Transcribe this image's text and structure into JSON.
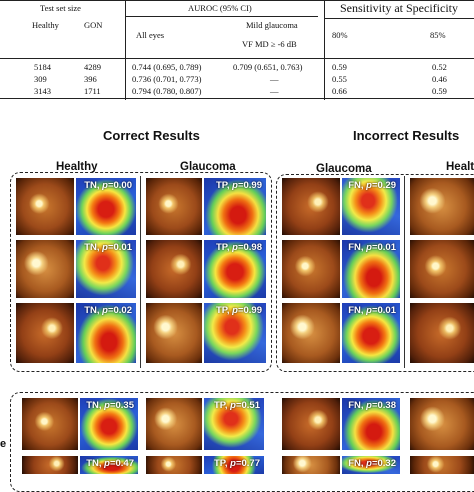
{
  "table": {
    "header": {
      "test_set_size": "Test set size",
      "auroc": "AUROC (95% CI)",
      "sensitivity": "Sensitivity at Specificity",
      "healthy": "Healthy",
      "gon": "GON",
      "all_eyes": "All eyes",
      "mild_glaucoma": "Mild glaucoma",
      "vf_md": "VF MD ≥ -6 dB",
      "spec_80": "80%",
      "spec_85": "85%"
    },
    "rows": [
      {
        "healthy": "5184",
        "gon": "4289",
        "all_eyes": "0.744 (0.695, 0.789)",
        "mild": "0.709 (0.651, 0.763)",
        "s80": "0.59",
        "s85": "0.52"
      },
      {
        "healthy": "309",
        "gon": "396",
        "all_eyes": "0.736 (0.701, 0.773)",
        "mild": "—",
        "s80": "0.55",
        "s85": "0.46"
      },
      {
        "healthy": "3143",
        "gon": "1711",
        "all_eyes": "0.794 (0.780, 0.807)",
        "mild": "—",
        "s80": "0.66",
        "s85": "0.59"
      }
    ]
  },
  "sections": {
    "correct": "Correct Results",
    "incorrect": "Incorrect Results",
    "healthy": "Healthy",
    "glaucoma": "Glaucoma",
    "glaucoma_right": "Glaucoma",
    "healthy_right": "Healt"
  },
  "panels": {
    "tn": [
      {
        "prefix": "TN, ",
        "p": "p",
        "value": "=0.00"
      },
      {
        "prefix": "TN, ",
        "p": "p",
        "value": "=0.01"
      },
      {
        "prefix": "TN, ",
        "p": "p",
        "value": "=0.02"
      }
    ],
    "tp": [
      {
        "prefix": "TP, ",
        "p": "p",
        "value": "=0.99"
      },
      {
        "prefix": "TP, ",
        "p": "p",
        "value": "=0.98"
      },
      {
        "prefix": "TP, ",
        "p": "p",
        "value": "=0.99"
      }
    ],
    "fn": [
      {
        "prefix": "FN, ",
        "p": "p",
        "value": "=0.29"
      },
      {
        "prefix": "FN, ",
        "p": "p",
        "value": "=0.01"
      },
      {
        "prefix": "FN, ",
        "p": "p",
        "value": "=0.01"
      }
    ],
    "bottom": [
      {
        "prefix": "TN, ",
        "p": "p",
        "value": "=0.35"
      },
      {
        "prefix": "TP, ",
        "p": "p",
        "value": "=0.51"
      },
      {
        "prefix": "FN, ",
        "p": "p",
        "value": "=0.38"
      },
      {
        "prefix": "TN, ",
        "p": "p",
        "value": "=0.47"
      },
      {
        "prefix": "TP, ",
        "p": "p",
        "value": "=0.77"
      },
      {
        "prefix": "FN, ",
        "p": "p",
        "value": "=0.32"
      }
    ]
  },
  "side_letter": "e"
}
